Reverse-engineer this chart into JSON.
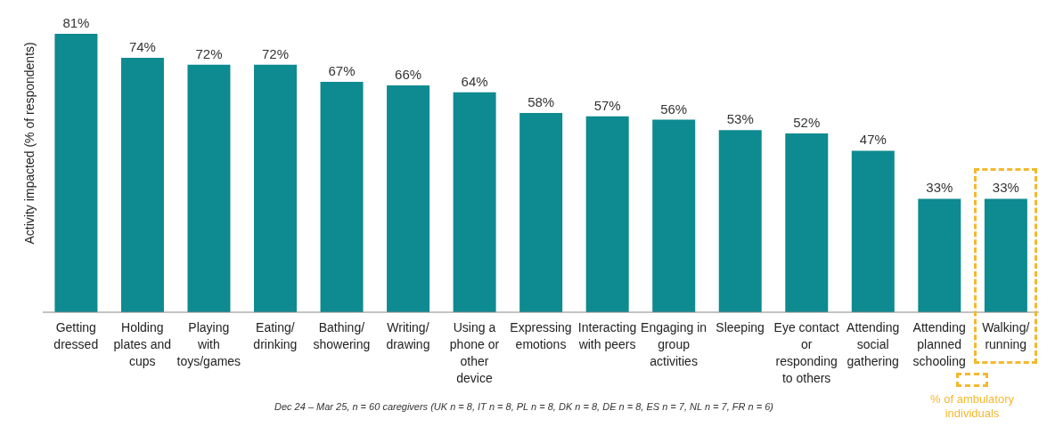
{
  "chart_data": {
    "type": "bar",
    "ylabel": "Activity impacted (% of respondents)",
    "categories": [
      "Getting dressed",
      "Holding plates and cups",
      "Playing with toys/games",
      "Eating/ drinking",
      "Bathing/ showering",
      "Writing/ drawing",
      "Using a phone or other device",
      "Expressing emotions",
      "Interacting with peers",
      "Engaging in group activities",
      "Sleeping",
      "Eye contact or responding to others",
      "Attending social gathering",
      "Attending planned schooling",
      "Walking/ running"
    ],
    "values": [
      81,
      74,
      72,
      72,
      67,
      66,
      64,
      58,
      57,
      56,
      53,
      52,
      47,
      33,
      33
    ],
    "value_labels": [
      "81%",
      "74%",
      "72%",
      "72%",
      "67%",
      "66%",
      "64%",
      "58%",
      "57%",
      "56%",
      "53%",
      "52%",
      "47%",
      "33%",
      "33%"
    ],
    "color": "#0e8a91",
    "tick_labels": "x",
    "annotations": [
      "% of ambulatory individuals",
      "Dec 24 – Mar 25, n = 60 caregivers (UK n = 8, IT n = 8, PL n = 8, DK n = 8, DE n = 8, ES n = 7, NL n = 7, FR n = 6)"
    ]
  }
}
